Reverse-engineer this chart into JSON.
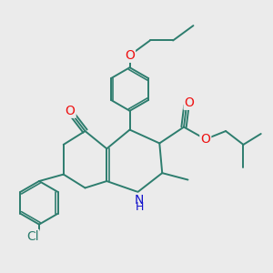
{
  "bg_color": "#ebebeb",
  "bond_color": "#2d7d6e",
  "bond_width": 1.4,
  "atom_colors": {
    "O": "#ee1111",
    "N": "#1111cc",
    "Cl": "#2d7d6e"
  },
  "fig_size": [
    3.0,
    3.0
  ],
  "dpi": 100
}
